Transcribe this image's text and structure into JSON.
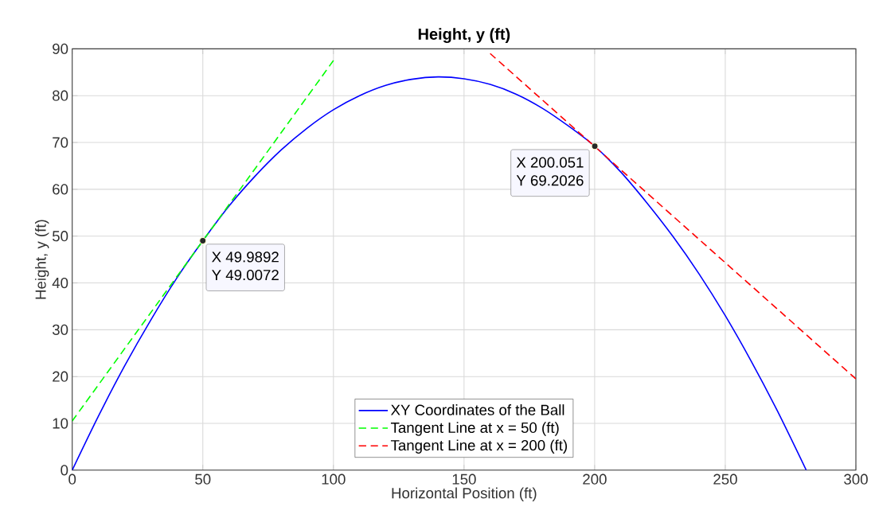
{
  "chart_data": {
    "type": "line",
    "title": "Height, y (ft)",
    "xlabel": "Horizontal Position (ft)",
    "ylabel": "Height, y (ft)",
    "xlim": [
      0,
      300
    ],
    "ylim": [
      0,
      90
    ],
    "xticks": [
      0,
      50,
      100,
      150,
      200,
      250,
      300
    ],
    "yticks": [
      0,
      10,
      20,
      30,
      40,
      50,
      60,
      70,
      80,
      90
    ],
    "grid": true,
    "legend": "bottom",
    "series": [
      {
        "name": "XY Coordinates of the Ball",
        "color": "#0000ff",
        "line_style": "solid",
        "marker": "none",
        "x": [
          0,
          10,
          20,
          30,
          40,
          50,
          60,
          70,
          80,
          90,
          100,
          110,
          120,
          130,
          140,
          150,
          160,
          170,
          180,
          190,
          200,
          210,
          220,
          230,
          240,
          250,
          260,
          270,
          281
        ],
        "values": [
          0,
          11.5,
          22.2,
          32.0,
          41.0,
          49.0,
          56.4,
          62.8,
          68.4,
          73.1,
          77.0,
          80.0,
          82.2,
          83.5,
          84.0,
          83.6,
          82.4,
          80.3,
          77.3,
          73.5,
          69.2,
          63.7,
          57.1,
          49.9,
          41.9,
          33.0,
          23.2,
          12.6,
          0
        ]
      },
      {
        "name": "Tangent Line at x = 50 (ft)",
        "color": "#00ff00",
        "line_style": "dashed",
        "marker": "none",
        "x": [
          0,
          100
        ],
        "values": [
          10.5,
          87.5
        ]
      },
      {
        "name": "Tangent Line at x = 200 (ft)",
        "color": "#ff0000",
        "line_style": "dashed",
        "marker": "none",
        "x": [
          160,
          300
        ],
        "values": [
          89,
          19.5
        ]
      },
      {
        "type": "scatter",
        "color": "#262626",
        "marker": "circle",
        "x": [
          49.9892,
          200.051
        ],
        "values": [
          49.0072,
          69.2026
        ]
      }
    ],
    "annotations": [
      "X 49.9892",
      "Y 49.0072",
      "X 200.051",
      "Y 69.2026"
    ]
  }
}
